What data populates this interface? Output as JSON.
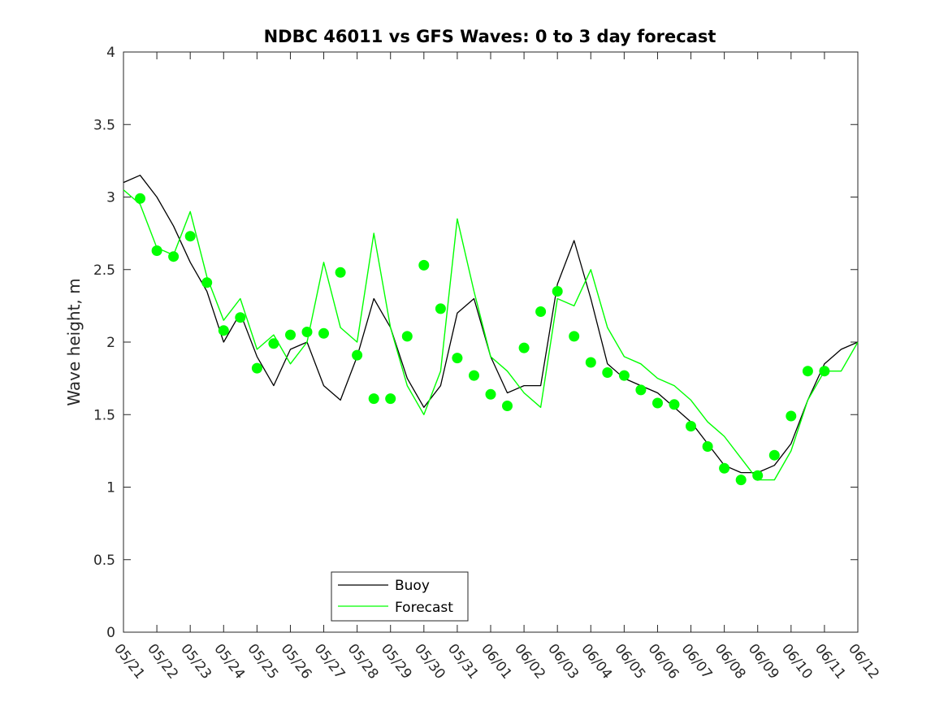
{
  "chart_data": {
    "type": "line",
    "title": "NDBC 46011 vs GFS Waves: 0 to 3 day forecast",
    "xlabel": "",
    "ylabel": "Wave height, m",
    "ylim": [
      0,
      4
    ],
    "yticks": [
      "0",
      "0.5",
      "1",
      "1.5",
      "2",
      "2.5",
      "3",
      "3.5",
      "4"
    ],
    "xticks": [
      "05/21",
      "05/22",
      "05/23",
      "05/24",
      "05/25",
      "05/26",
      "05/27",
      "05/28",
      "05/29",
      "05/30",
      "05/31",
      "06/01",
      "06/02",
      "06/03",
      "06/04",
      "06/05",
      "06/06",
      "06/07",
      "06/08",
      "06/09",
      "06/10",
      "06/11",
      "06/12"
    ],
    "xlim_days": [
      0,
      22
    ],
    "grid": false,
    "legend": {
      "placement": "bottom-center",
      "entries": [
        "Buoy",
        "Forecast"
      ]
    },
    "colors": {
      "buoy": "#000000",
      "forecast": "#00ff00"
    },
    "series": [
      {
        "name": "Buoy",
        "style": "line",
        "x": [
          0,
          0.5,
          1,
          1.5,
          2,
          2.5,
          3,
          3.5,
          4,
          4.5,
          5,
          5.5,
          6,
          6.5,
          7,
          7.5,
          8,
          8.5,
          9,
          9.5,
          10,
          10.5,
          11,
          11.5,
          12,
          12.5,
          13,
          13.5,
          14,
          14.5,
          15,
          15.5,
          16,
          16.5,
          17,
          17.5,
          18,
          18.5,
          19,
          19.5,
          20,
          20.5,
          21,
          21.5,
          22
        ],
        "y": [
          3.1,
          3.15,
          3.0,
          2.8,
          2.55,
          2.35,
          2.0,
          2.2,
          1.9,
          1.7,
          1.95,
          2.0,
          1.7,
          1.6,
          1.9,
          2.3,
          2.1,
          1.75,
          1.55,
          1.7,
          2.2,
          2.3,
          1.9,
          1.65,
          1.7,
          1.7,
          2.4,
          2.7,
          2.3,
          1.85,
          1.75,
          1.7,
          1.65,
          1.55,
          1.45,
          1.3,
          1.15,
          1.1,
          1.1,
          1.15,
          1.3,
          1.6,
          1.85,
          1.95,
          2.0
        ]
      },
      {
        "name": "Forecast",
        "style": "line",
        "x": [
          0,
          0.5,
          1,
          1.5,
          2,
          2.5,
          3,
          3.5,
          4,
          4.5,
          5,
          5.5,
          6,
          6.5,
          7,
          7.5,
          8,
          8.5,
          9,
          9.5,
          10,
          10.5,
          11,
          11.5,
          12,
          12.5,
          13,
          13.5,
          14,
          14.5,
          15,
          15.5,
          16,
          16.5,
          17,
          17.5,
          18,
          18.5,
          19,
          19.5,
          20,
          20.5,
          21,
          21.5,
          22
        ],
        "y": [
          3.05,
          2.95,
          2.65,
          2.6,
          2.9,
          2.45,
          2.15,
          2.3,
          1.95,
          2.05,
          1.85,
          2.0,
          2.55,
          2.1,
          2.0,
          2.75,
          2.1,
          1.7,
          1.5,
          1.8,
          2.85,
          2.35,
          1.9,
          1.8,
          1.65,
          1.55,
          2.3,
          2.25,
          2.5,
          2.1,
          1.9,
          1.85,
          1.75,
          1.7,
          1.6,
          1.45,
          1.35,
          1.2,
          1.05,
          1.05,
          1.25,
          1.6,
          1.8,
          1.8,
          2.0
        ]
      },
      {
        "name": "Forecast",
        "style": "markers",
        "x": [
          0.5,
          1,
          1.5,
          2,
          2.5,
          3,
          3.5,
          4,
          4.5,
          5,
          5.5,
          6,
          6.5,
          7,
          7.5,
          8,
          8.5,
          9,
          9.5,
          10,
          10.5,
          11,
          11.5,
          12,
          12.5,
          13,
          13.5,
          14,
          14.5,
          15,
          15.5,
          16,
          16.5,
          17,
          17.5,
          18,
          18.5,
          19,
          19.5,
          20,
          20.5,
          21
        ],
        "y": [
          2.99,
          2.63,
          2.59,
          2.73,
          2.41,
          2.08,
          2.17,
          1.82,
          1.99,
          2.05,
          2.07,
          2.06,
          2.48,
          1.91,
          1.61,
          1.61,
          2.04,
          2.53,
          2.23,
          1.89,
          1.77,
          1.64,
          1.56,
          1.96,
          2.21,
          2.35,
          2.04,
          1.86,
          1.79,
          1.77,
          1.67,
          1.58,
          1.57,
          1.42,
          1.28,
          1.13,
          1.05,
          1.08,
          1.22,
          1.49,
          1.8,
          1.8
        ]
      }
    ]
  }
}
